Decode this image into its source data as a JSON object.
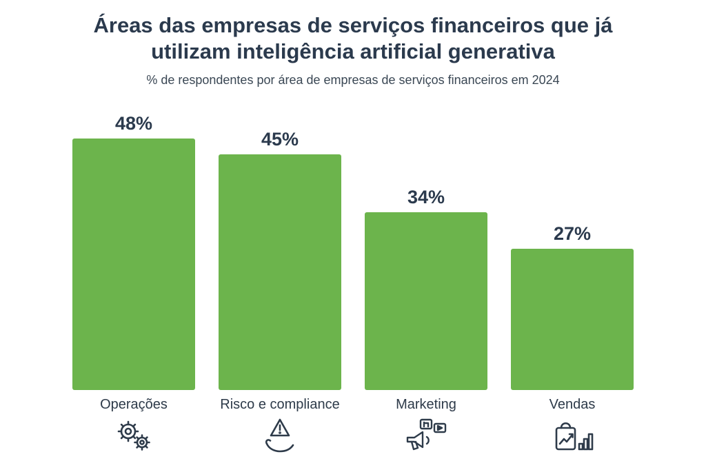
{
  "header": {
    "title_line1": "Áreas das empresas de serviços financeiros que já",
    "title_line2": "utilizam inteligência artificial generativa",
    "subtitle": "% de respondentes por área de empresas de serviços financeiros em 2024"
  },
  "colors": {
    "bar": "#6cb44c",
    "title": "#2b3a4d",
    "subtitle": "#3a4754",
    "icon_stroke": "#2e3b4a"
  },
  "chart_data": {
    "type": "bar",
    "title": "Áreas das empresas de serviços financeiros que já utilizam inteligência artificial generativa",
    "subtitle": "% de respondentes por área de empresas de serviços financeiros em 2024",
    "categories": [
      "Operações",
      "Risco e compliance",
      "Marketing",
      "Vendas"
    ],
    "values": [
      48,
      45,
      34,
      27
    ],
    "value_labels": [
      "48%",
      "45%",
      "34%",
      "27%"
    ],
    "unit": "%",
    "ylim": [
      0,
      50
    ],
    "grid": false,
    "legend": "none",
    "bar_color": "#6cb44c",
    "icons": [
      "gears-icon",
      "hand-warning-icon",
      "megaphone-social-icon",
      "shopping-bag-chart-icon"
    ]
  }
}
